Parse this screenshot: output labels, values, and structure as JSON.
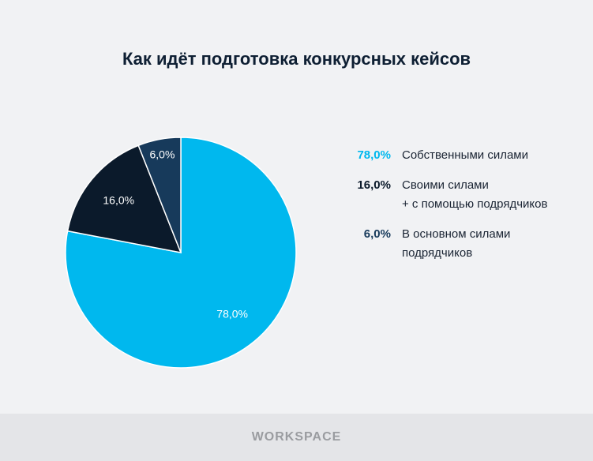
{
  "chart_data": {
    "type": "pie",
    "title": "Как идёт подготовка конкурсных кейсов",
    "series": [
      {
        "name": "Собственными силами",
        "color": "#00b8ee",
        "values": [
          78
        ],
        "value_labels": [
          "78,0%"
        ]
      },
      {
        "name": "Своими силами\n+ с помощью подрядчиков",
        "color": "#0b1a2b",
        "values": [
          16
        ],
        "value_labels": [
          "16,0%"
        ]
      },
      {
        "name": "В основном силами\nподрядчиков",
        "color": "#173a5b",
        "values": [
          6
        ],
        "value_labels": [
          "6,0%"
        ]
      }
    ]
  },
  "footer": "WORKSPACE"
}
